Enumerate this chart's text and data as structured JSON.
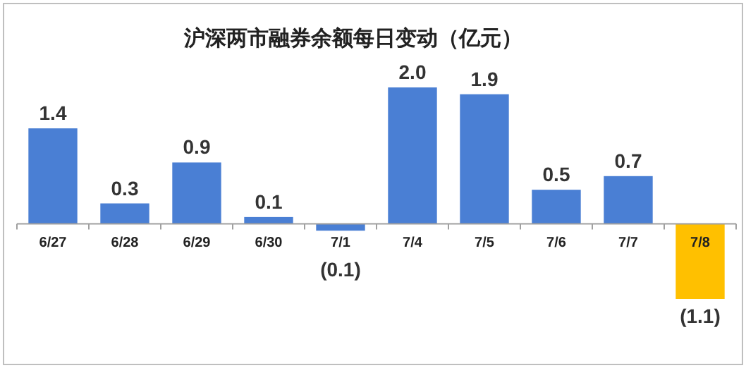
{
  "chart_data": {
    "type": "bar",
    "title": "沪深两市融券余额每日变动（亿元）",
    "categories": [
      "6/27",
      "6/28",
      "6/29",
      "6/30",
      "7/1",
      "7/4",
      "7/5",
      "7/6",
      "7/7",
      "7/8"
    ],
    "values": [
      1.4,
      0.3,
      0.9,
      0.1,
      -0.1,
      2.0,
      1.9,
      0.5,
      0.7,
      -1.1
    ],
    "colors": [
      "#4a7fd4",
      "#4a7fd4",
      "#4a7fd4",
      "#4a7fd4",
      "#4a7fd4",
      "#4a7fd4",
      "#4a7fd4",
      "#4a7fd4",
      "#4a7fd4",
      "#ffc000"
    ],
    "value_labels": [
      "1.4",
      "0.3",
      "0.9",
      "0.1",
      "(0.1)",
      "2.0",
      "1.9",
      "0.5",
      "0.7",
      "(1.1)"
    ]
  }
}
